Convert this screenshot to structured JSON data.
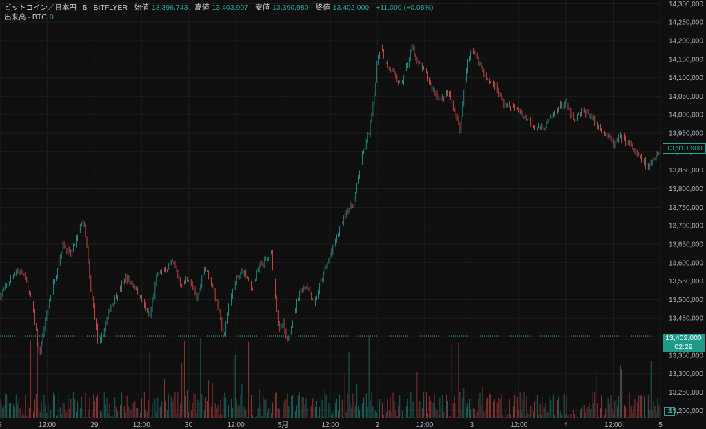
{
  "legend": {
    "symbol": "ビットコイン／日本円 · 5 · BITFLYER",
    "open_label": "始値",
    "open": "13,396,743",
    "high_label": "高値",
    "high": "13,403,907",
    "low_label": "安値",
    "low": "13,390,980",
    "close_label": "終値",
    "close": "13,402,000",
    "change": "+11,000 (+0.08%)",
    "volume_label": "出来高 · BTC",
    "volume": "0"
  },
  "badges": {
    "last_visible": "13,910,900",
    "current": "13,402,000",
    "countdown": "02:29",
    "volume": "2"
  },
  "colors": {
    "up": "#26a69a",
    "down": "#ef5350",
    "background": "#0f0f0f",
    "grid": "#1e1e1e"
  },
  "chart_data": {
    "type": "line",
    "title": "",
    "xlabel": "",
    "ylabel": "",
    "ylim": [
      13180000,
      14310000
    ],
    "y_ticks": [
      13200000,
      13250000,
      13300000,
      13350000,
      13400000,
      13450000,
      13500000,
      13550000,
      13600000,
      13650000,
      13700000,
      13750000,
      13800000,
      13850000,
      13900000,
      13950000,
      14000000,
      14050000,
      14100000,
      14150000,
      14200000,
      14250000,
      14300000
    ],
    "y_tick_labels": [
      "13,200,000",
      "13,250,000",
      "13,300,000",
      "13,350,000",
      "13,400,000",
      "13,450,000",
      "13,500,000",
      "13,550,000",
      "13,600,000",
      "13,650,000",
      "13,700,000",
      "13,750,000",
      "13,800,000",
      "13,850,000",
      "13,900,000",
      "13,950,000",
      "14,000,000",
      "14,050,000",
      "14,100,000",
      "14,150,000",
      "14,200,000",
      "14,250,000",
      "14,300,000"
    ],
    "x_ticks": [
      {
        "label": "8",
        "x": 0
      },
      {
        "label": "12:00",
        "x": 12
      },
      {
        "label": "29",
        "x": 24
      },
      {
        "label": "12:00",
        "x": 36
      },
      {
        "label": "30",
        "x": 48
      },
      {
        "label": "12:00",
        "x": 60
      },
      {
        "label": "5月",
        "x": 72
      },
      {
        "label": "12:00",
        "x": 84
      },
      {
        "label": "2",
        "x": 96
      },
      {
        "label": "12:00",
        "x": 108
      },
      {
        "label": "3",
        "x": 120
      },
      {
        "label": "12:00",
        "x": 132
      },
      {
        "label": "4",
        "x": 144
      },
      {
        "label": "12:00",
        "x": 156
      },
      {
        "label": "5",
        "x": 168
      }
    ],
    "x_range": [
      0,
      168
    ],
    "series": [
      {
        "values": [
          [
            0,
            13510000
          ],
          [
            2,
            13540000
          ],
          [
            4,
            13580000
          ],
          [
            6,
            13570000
          ],
          [
            8,
            13500000
          ],
          [
            10,
            13350000
          ],
          [
            12,
            13470000
          ],
          [
            14,
            13560000
          ],
          [
            16,
            13650000
          ],
          [
            18,
            13620000
          ],
          [
            20,
            13680000
          ],
          [
            21,
            13720000
          ],
          [
            22,
            13650000
          ],
          [
            23,
            13530000
          ],
          [
            24,
            13470000
          ],
          [
            25,
            13370000
          ],
          [
            26,
            13400000
          ],
          [
            28,
            13480000
          ],
          [
            30,
            13520000
          ],
          [
            32,
            13560000
          ],
          [
            34,
            13540000
          ],
          [
            36,
            13500000
          ],
          [
            38,
            13450000
          ],
          [
            40,
            13570000
          ],
          [
            42,
            13580000
          ],
          [
            44,
            13600000
          ],
          [
            46,
            13540000
          ],
          [
            48,
            13560000
          ],
          [
            50,
            13500000
          ],
          [
            52,
            13590000
          ],
          [
            54,
            13540000
          ],
          [
            56,
            13450000
          ],
          [
            57,
            13390000
          ],
          [
            58,
            13480000
          ],
          [
            60,
            13550000
          ],
          [
            62,
            13580000
          ],
          [
            64,
            13530000
          ],
          [
            66,
            13590000
          ],
          [
            68,
            13610000
          ],
          [
            69,
            13630000
          ],
          [
            70,
            13520000
          ],
          [
            71,
            13410000
          ],
          [
            72,
            13440000
          ],
          [
            73,
            13380000
          ],
          [
            74,
            13430000
          ],
          [
            75,
            13470000
          ],
          [
            76,
            13520000
          ],
          [
            78,
            13540000
          ],
          [
            80,
            13490000
          ],
          [
            82,
            13560000
          ],
          [
            84,
            13620000
          ],
          [
            86,
            13680000
          ],
          [
            88,
            13740000
          ],
          [
            90,
            13760000
          ],
          [
            92,
            13880000
          ],
          [
            94,
            13960000
          ],
          [
            95,
            14030000
          ],
          [
            96,
            14150000
          ],
          [
            97,
            14190000
          ],
          [
            98,
            14140000
          ],
          [
            100,
            14110000
          ],
          [
            102,
            14080000
          ],
          [
            104,
            14150000
          ],
          [
            105,
            14190000
          ],
          [
            106,
            14140000
          ],
          [
            108,
            14120000
          ],
          [
            110,
            14070000
          ],
          [
            112,
            14040000
          ],
          [
            114,
            14060000
          ],
          [
            116,
            14000000
          ],
          [
            117,
            13960000
          ],
          [
            118,
            14060000
          ],
          [
            119,
            14150000
          ],
          [
            120,
            14180000
          ],
          [
            122,
            14140000
          ],
          [
            124,
            14090000
          ],
          [
            126,
            14080000
          ],
          [
            128,
            14030000
          ],
          [
            130,
            14020000
          ],
          [
            132,
            14010000
          ],
          [
            134,
            13990000
          ],
          [
            136,
            13970000
          ],
          [
            138,
            13960000
          ],
          [
            140,
            13990000
          ],
          [
            142,
            14020000
          ],
          [
            144,
            14030000
          ],
          [
            146,
            13980000
          ],
          [
            148,
            14010000
          ],
          [
            150,
            14000000
          ],
          [
            152,
            13970000
          ],
          [
            154,
            13950000
          ],
          [
            156,
            13920000
          ],
          [
            158,
            13940000
          ],
          [
            160,
            13920000
          ],
          [
            162,
            13890000
          ],
          [
            164,
            13870000
          ],
          [
            165,
            13850000
          ],
          [
            166,
            13880000
          ],
          [
            168,
            13910000
          ]
        ]
      }
    ]
  }
}
